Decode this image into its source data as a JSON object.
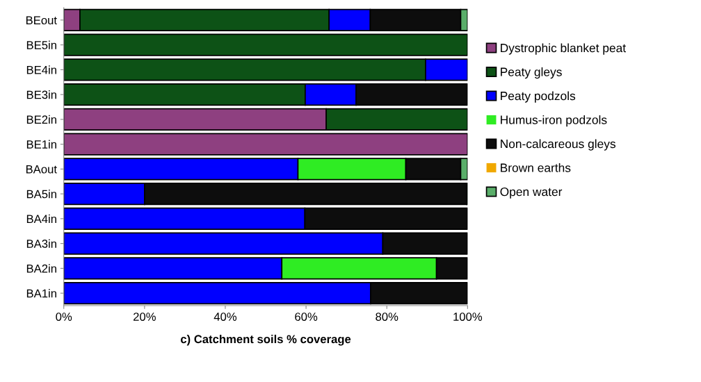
{
  "chart_data": {
    "type": "bar",
    "orientation": "horizontal",
    "stacked": true,
    "xlabel": "c) Catchment soils % coverage",
    "categories": [
      "BEout",
      "BE5in",
      "BE4in",
      "BE3in",
      "BE2in",
      "BE1in",
      "BAout",
      "BA5in",
      "BA4in",
      "BA3in",
      "BA2in",
      "BA1in"
    ],
    "series": [
      {
        "name": "Dystrophic blanket peat",
        "color": "#8e4080",
        "values": [
          4,
          0,
          0,
          0,
          65,
          100,
          0,
          0,
          0,
          0,
          0,
          0
        ]
      },
      {
        "name": "Peaty gleys",
        "color": "#0d5216",
        "values": [
          61.7,
          100,
          89.6,
          59.8,
          35,
          0,
          0,
          0,
          0,
          0,
          0,
          0
        ]
      },
      {
        "name": "Peaty podzols",
        "color": "#0000ff",
        "values": [
          10.2,
          0,
          10.4,
          12.6,
          0,
          0,
          58,
          20,
          59.7,
          79,
          54,
          76
        ]
      },
      {
        "name": "Humus-iron podzols",
        "color": "#2fec23",
        "values": [
          0,
          0,
          0,
          0,
          0,
          0,
          26.7,
          0,
          0,
          0,
          38.3,
          0
        ]
      },
      {
        "name": "Non-calcareous gleys",
        "color": "#0d0d0d",
        "values": [
          22.4,
          0,
          0,
          27.6,
          0,
          0,
          13.6,
          79.8,
          40.3,
          21,
          7.7,
          24
        ]
      },
      {
        "name": "Brown earths",
        "color": "#f0a800",
        "values": [
          0,
          0,
          0,
          0,
          0,
          0,
          0,
          0,
          0,
          0,
          0,
          0
        ]
      },
      {
        "name": "Open water",
        "color": "#5aae6a",
        "values": [
          1.7,
          0,
          0,
          0,
          0,
          0,
          1.7,
          0.2,
          0,
          0,
          0,
          0
        ]
      }
    ],
    "xlim": [
      0,
      100
    ],
    "xticks": [
      {
        "value": 0,
        "label": "0%"
      },
      {
        "value": 20,
        "label": "20%"
      },
      {
        "value": 40,
        "label": "40%"
      },
      {
        "value": 60,
        "label": "60%"
      },
      {
        "value": 80,
        "label": "80%"
      },
      {
        "value": 100,
        "label": "100%"
      }
    ],
    "grid": false,
    "legend": "right"
  }
}
